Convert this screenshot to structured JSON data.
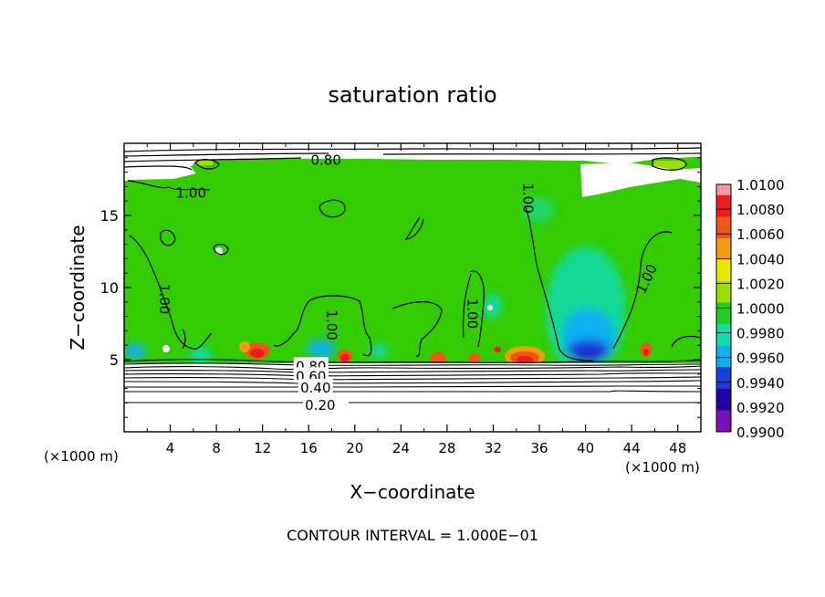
{
  "chart_data": {
    "type": "heatmap",
    "title": "saturation ratio",
    "xlabel": "X−coordinate",
    "ylabel": "Z−coordinate",
    "x_unit_left": "(×1000 m)",
    "x_unit_right": "(×1000 m)",
    "footer": "CONTOUR INTERVAL = 1.000E−01",
    "xlim": [
      0,
      50
    ],
    "ylim": [
      0,
      20
    ],
    "x_ticks": [
      4,
      8,
      12,
      16,
      20,
      24,
      28,
      32,
      36,
      40,
      44,
      48
    ],
    "y_ticks": [
      5,
      10,
      15
    ],
    "colorbar": {
      "labels": [
        "1.0100",
        "1.0080",
        "1.0060",
        "1.0040",
        "1.0020",
        "1.0000",
        "0.9980",
        "0.9960",
        "0.9940",
        "0.9920",
        "0.9900"
      ],
      "colors": [
        "#f49aa0",
        "#ee1c1c",
        "#f0561a",
        "#f59b10",
        "#e8e800",
        "#9ade00",
        "#22cc22",
        "#10dcb0",
        "#10b0f0",
        "#1e3cdc",
        "#2200b0",
        "#7a10b8"
      ]
    },
    "contour_labels": [
      {
        "text": "0.80",
        "x": 17.5,
        "z": 18.9
      },
      {
        "text": "1.00",
        "x": 5.8,
        "z": 16.6
      },
      {
        "text": "1.00",
        "x": 35.0,
        "z": 16.2
      },
      {
        "text": "1.00",
        "x": 3.5,
        "z": 9.2
      },
      {
        "text": "1.00",
        "x": 18.0,
        "z": 7.4
      },
      {
        "text": "1.00",
        "x": 30.2,
        "z": 8.2
      },
      {
        "text": "1.00",
        "x": 45.3,
        "z": 10.6
      },
      {
        "text": "0.80",
        "x": 16.2,
        "z": 4.6
      },
      {
        "text": "0.60",
        "x": 16.2,
        "z": 3.9
      },
      {
        "text": "0.40",
        "x": 16.6,
        "z": 3.1
      },
      {
        "text": "0.20",
        "x": 17.0,
        "z": 1.9
      }
    ]
  }
}
